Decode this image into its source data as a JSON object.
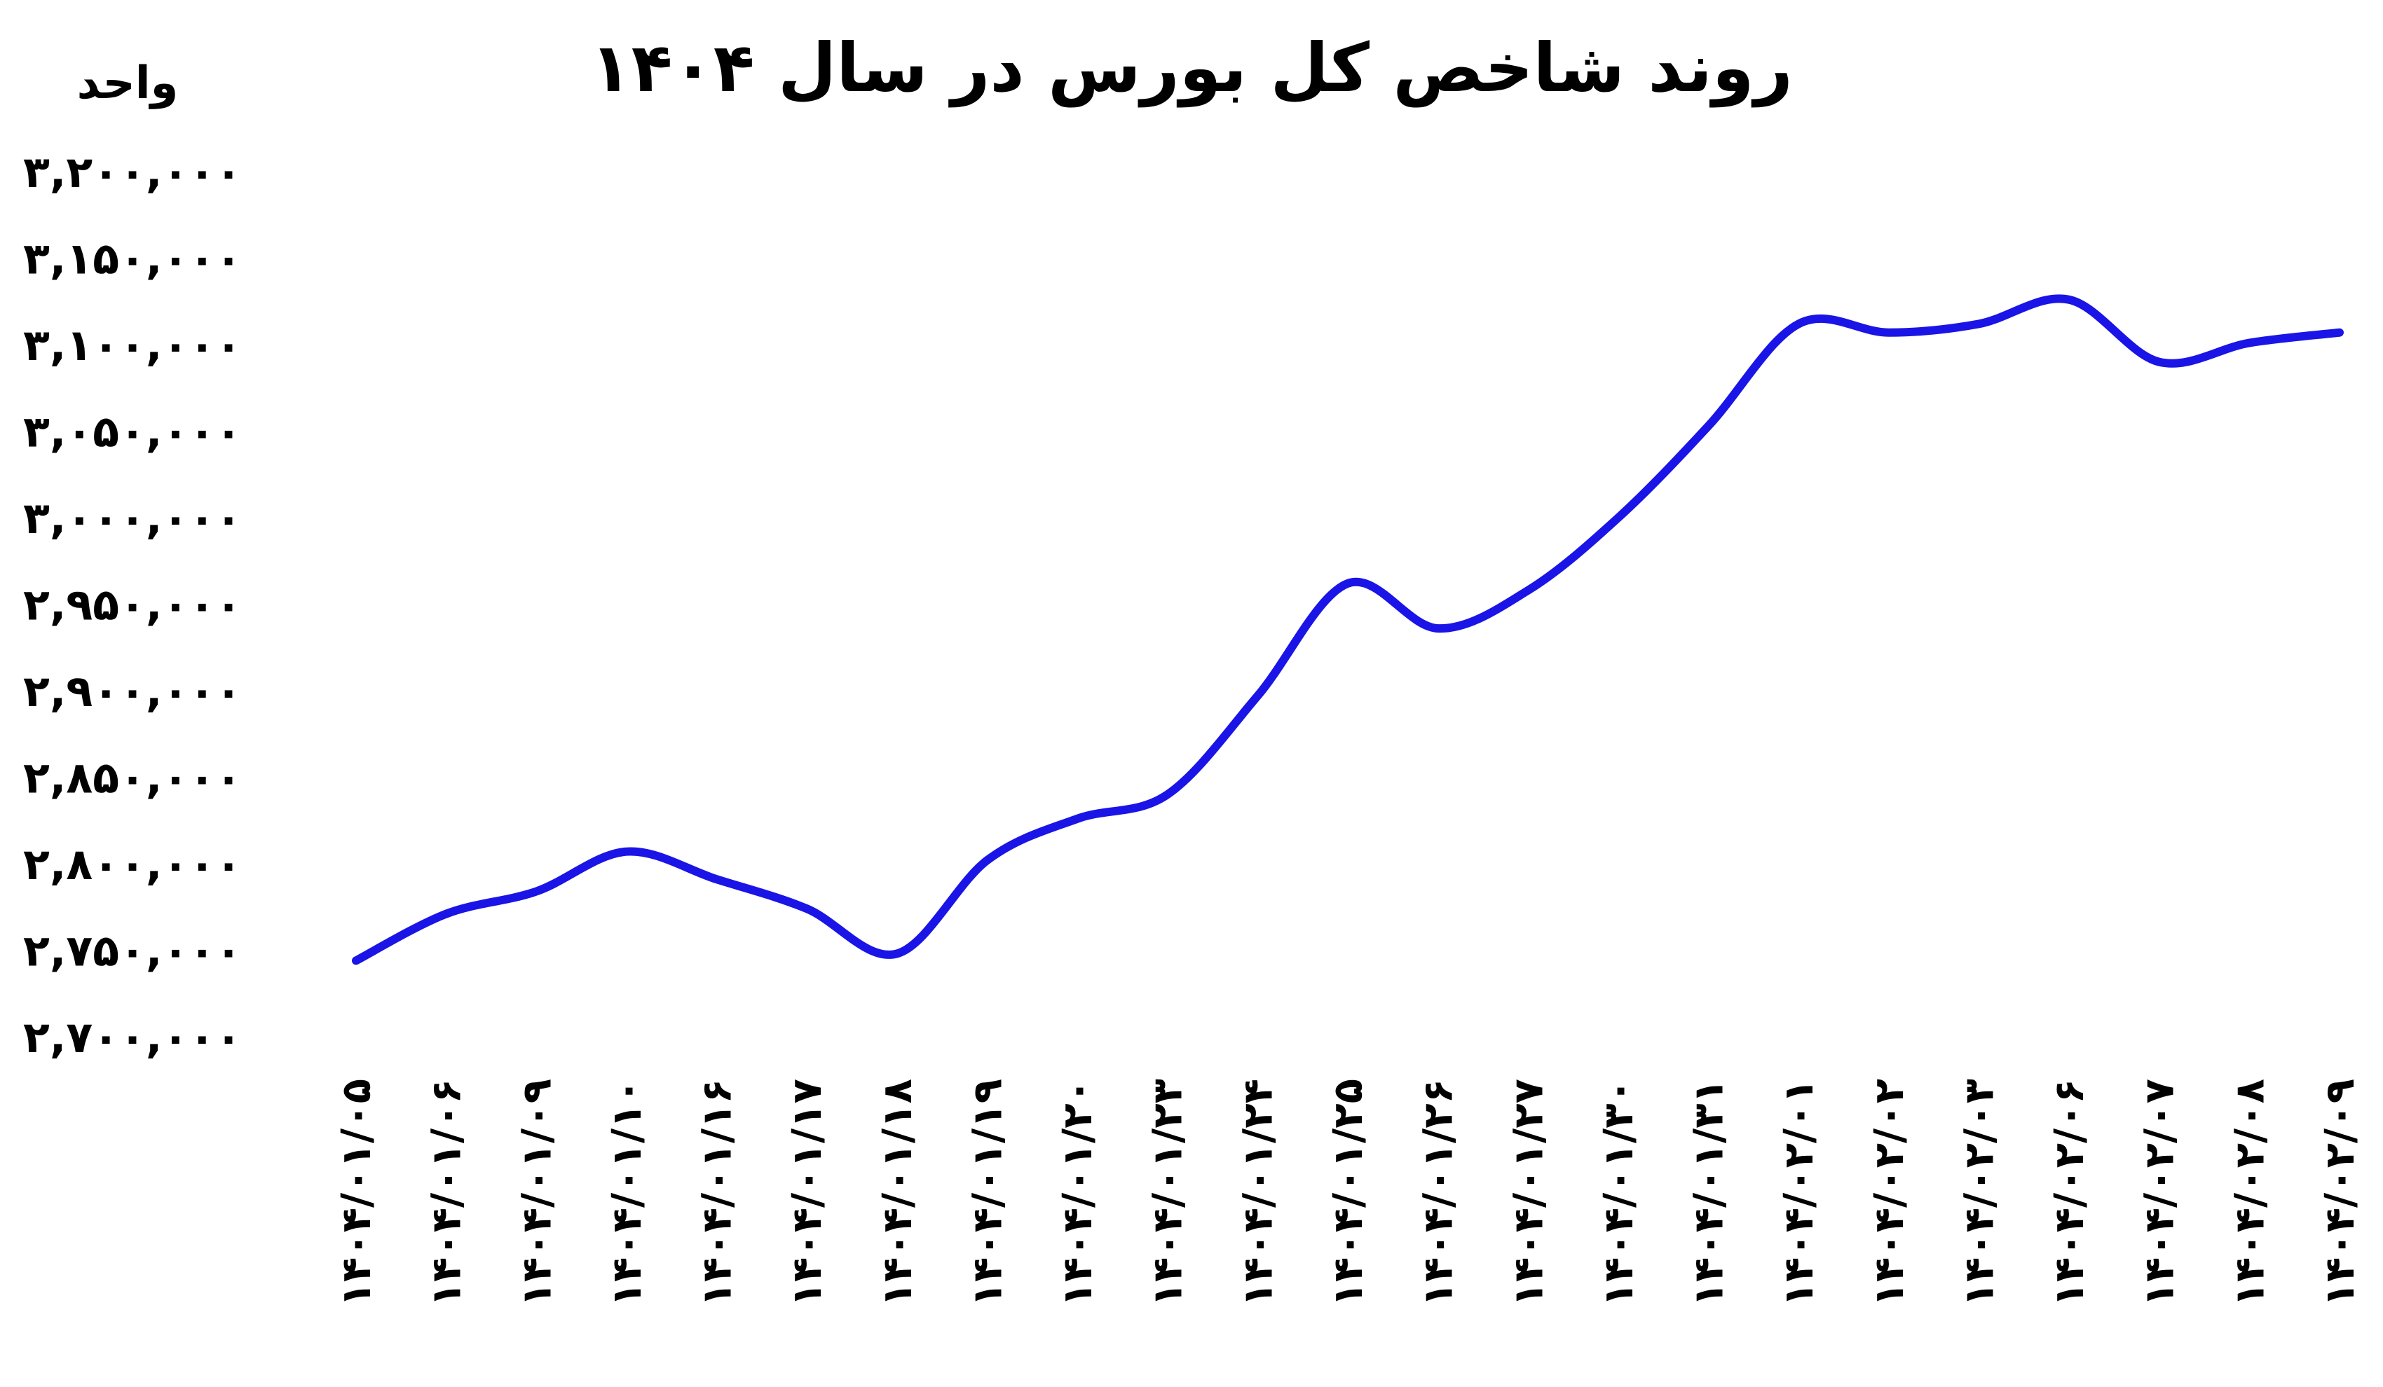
{
  "chart_data": {
    "type": "line",
    "title": "روند شاخص کل بورس در سال ۱۴۰۴",
    "ylabel": "واحد",
    "xlabel": "",
    "ylim": [
      2700000,
      3200000
    ],
    "yticks": [
      2700000,
      2750000,
      2800000,
      2850000,
      2900000,
      2950000,
      3000000,
      3050000,
      3100000,
      3150000,
      3200000
    ],
    "ytick_labels": [
      "۲,۷۰۰,۰۰۰",
      "۲,۷۵۰,۰۰۰",
      "۲,۸۰۰,۰۰۰",
      "۲,۸۵۰,۰۰۰",
      "۲,۹۰۰,۰۰۰",
      "۲,۹۵۰,۰۰۰",
      "۳,۰۰۰,۰۰۰",
      "۳,۰۵۰,۰۰۰",
      "۳,۱۰۰,۰۰۰",
      "۳,۱۵۰,۰۰۰",
      "۳,۲۰۰,۰۰۰"
    ],
    "categories": [
      "۱۴۰۴/۰۱/۰۵",
      "۱۴۰۴/۰۱/۰۶",
      "۱۴۰۴/۰۱/۰۹",
      "۱۴۰۴/۰۱/۱۰",
      "۱۴۰۴/۰۱/۱۶",
      "۱۴۰۴/۰۱/۱۷",
      "۱۴۰۴/۰۱/۱۸",
      "۱۴۰۴/۰۱/۱۹",
      "۱۴۰۴/۰۱/۲۰",
      "۱۴۰۴/۰۱/۲۳",
      "۱۴۰۴/۰۱/۲۴",
      "۱۴۰۴/۰۱/۲۵",
      "۱۴۰۴/۰۱/۲۶",
      "۱۴۰۴/۰۱/۲۷",
      "۱۴۰۴/۰۱/۳۰",
      "۱۴۰۴/۰۱/۳۱",
      "۱۴۰۴/۰۲/۰۱",
      "۱۴۰۴/۰۲/۰۲",
      "۱۴۰۴/۰۲/۰۳",
      "۱۴۰۴/۰۲/۰۶",
      "۱۴۰۴/۰۲/۰۷",
      "۱۴۰۴/۰۲/۰۸",
      "۱۴۰۴/۰۲/۰۹"
    ],
    "series": [
      {
        "values": [
          2744000,
          2771000,
          2784000,
          2807000,
          2791000,
          2774000,
          2748000,
          2802000,
          2826000,
          2840000,
          2897000,
          2962000,
          2936000,
          2958000,
          3000000,
          3053000,
          3112000,
          3107000,
          3112000,
          3126000,
          3090000,
          3101000,
          3107000
        ]
      }
    ],
    "line_color": "#1a14e6",
    "grid": false,
    "legend": "none"
  }
}
